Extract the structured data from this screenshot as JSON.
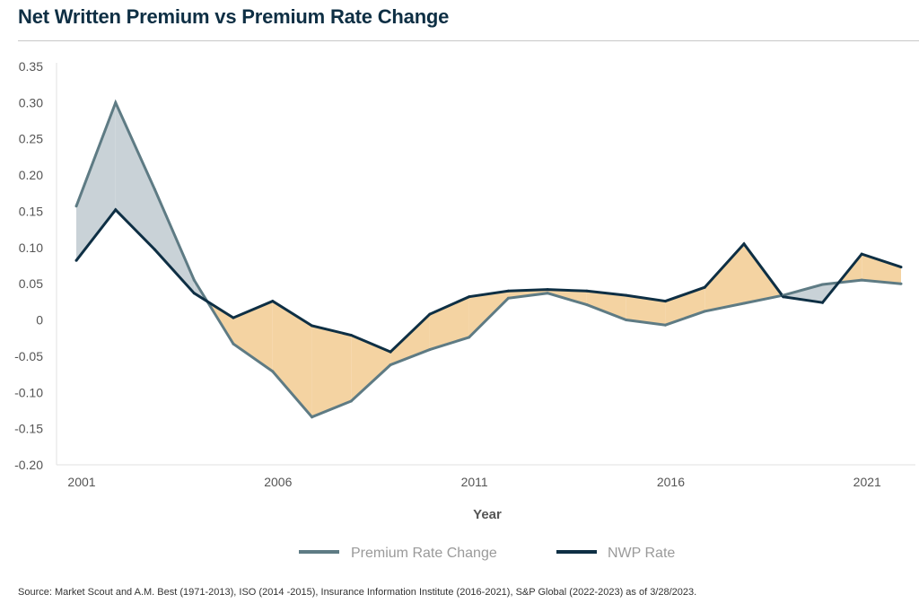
{
  "title": "Net Written Premium vs Premium Rate Change",
  "source": "Source: Market Scout and A.M. Best (1971-2013), ISO (2014 -2015), Insurance Information Institute (2016-2021), S&P Global (2022-2023) as of 3/28/2023.",
  "colors": {
    "premium_rate_line": "#5e7b84",
    "nwp_line": "#0e2f44",
    "fill_premium_above": "#c9d2d7",
    "fill_nwp_above": "#f4d3a2",
    "axis_text": "#555555"
  },
  "chart_data": {
    "type": "line",
    "title": "Net Written Premium vs Premium Rate Change",
    "xlabel": "Year",
    "ylabel": "",
    "x": [
      2001,
      2002,
      2003,
      2004,
      2005,
      2006,
      2007,
      2008,
      2009,
      2010,
      2011,
      2012,
      2013,
      2014,
      2015,
      2016,
      2017,
      2018,
      2019,
      2020,
      2021,
      2022
    ],
    "x_tick_labels": [
      "2001",
      "2006",
      "2011",
      "2016",
      "2021"
    ],
    "y_tick_labels": [
      "0.35",
      "0.30",
      "0.25",
      "0.20",
      "0.15",
      "0.10",
      "0.05",
      "0",
      "-0.05",
      "-0.10",
      "-0.15",
      "-0.20"
    ],
    "ylim": [
      -0.2,
      0.35
    ],
    "series": [
      {
        "name": "Premium Rate Change",
        "values": [
          0.157,
          0.3,
          0.18,
          0.055,
          -0.033,
          -0.071,
          -0.134,
          -0.112,
          -0.062,
          -0.041,
          -0.024,
          0.03,
          0.037,
          0.021,
          0.0,
          -0.007,
          0.012,
          0.023,
          0.034,
          0.049,
          0.055,
          0.05
        ]
      },
      {
        "name": "NWP Rate",
        "values": [
          0.082,
          0.152,
          0.097,
          0.037,
          0.003,
          0.026,
          -0.008,
          -0.021,
          -0.044,
          0.008,
          0.032,
          0.04,
          0.042,
          0.04,
          0.034,
          0.026,
          0.045,
          0.105,
          0.032,
          0.024,
          0.091,
          0.073
        ]
      }
    ],
    "grid": false,
    "legend_position": "bottom-center"
  }
}
